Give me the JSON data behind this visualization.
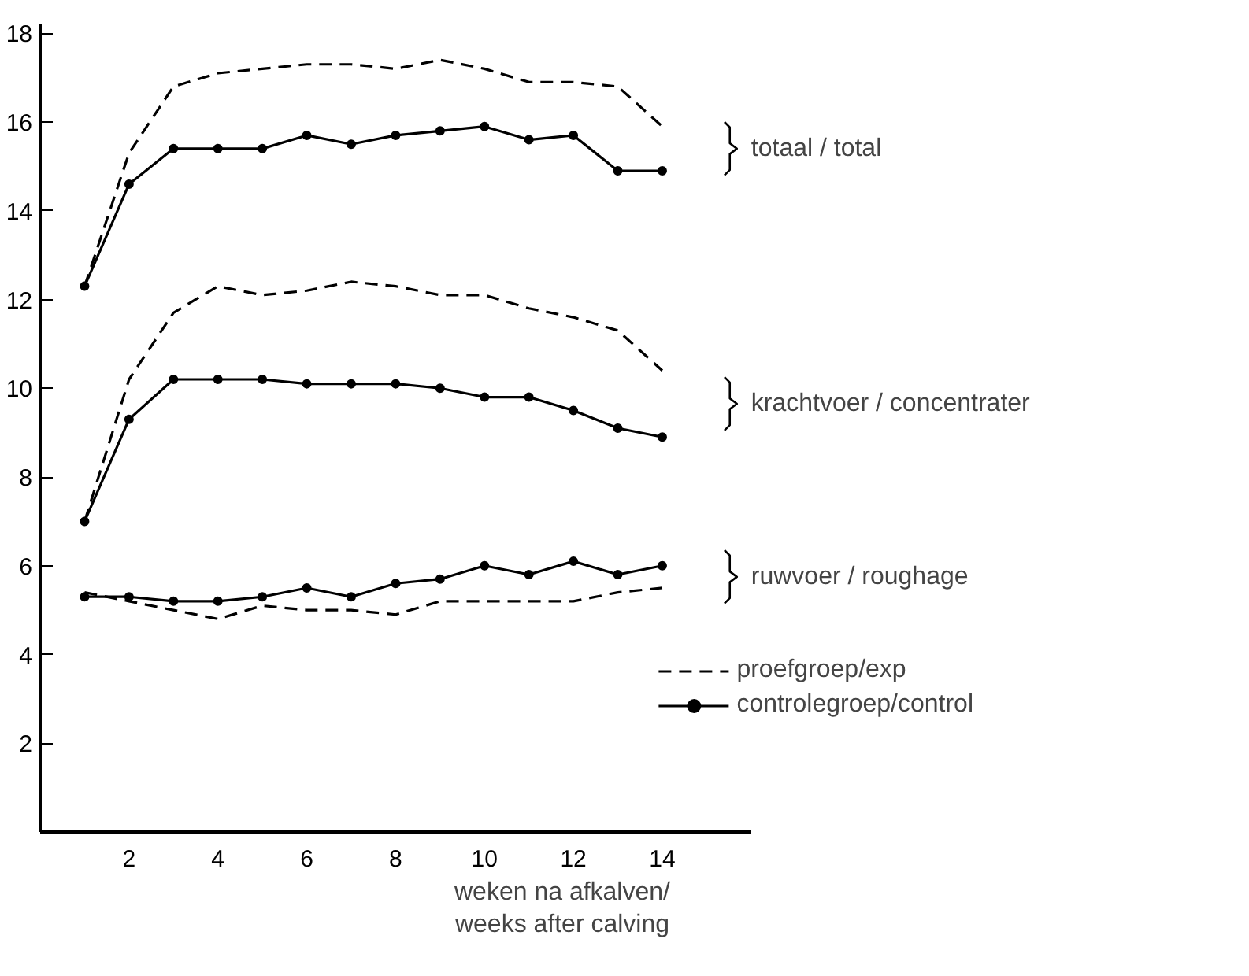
{
  "chart_data": {
    "type": "line",
    "xlabel": "weken na afkalven/\nweeks after calving",
    "x": [
      1,
      2,
      3,
      4,
      5,
      6,
      7,
      8,
      9,
      10,
      11,
      12,
      13,
      14
    ],
    "xlim": [
      0,
      16
    ],
    "ylim": [
      0,
      18.2
    ],
    "xticks": [
      2,
      4,
      6,
      8,
      10,
      12,
      14
    ],
    "yticks": [
      2,
      4,
      6,
      8,
      10,
      12,
      14,
      16,
      18
    ],
    "grid": false,
    "legend": "bottom right",
    "series": [
      {
        "name": "proefgroep/exp",
        "color": "#000000",
        "line_style": "dashed",
        "marker": "none",
        "values": [
          12.3,
          15.3,
          16.8,
          17.1,
          17.2,
          17.3,
          17.3,
          17.2,
          17.4,
          17.2,
          16.9,
          16.9,
          16.8,
          15.9
        ]
      },
      {
        "name": "controlegroep/control",
        "color": "#000000",
        "line_style": "solid",
        "marker": "circle",
        "values": [
          12.3,
          14.6,
          15.4,
          15.4,
          15.4,
          15.7,
          15.5,
          15.7,
          15.8,
          15.9,
          15.6,
          15.7,
          14.9,
          14.9
        ]
      },
      {
        "color": "#000000",
        "line_style": "dashed",
        "marker": "none",
        "values": [
          7.0,
          10.2,
          11.7,
          12.3,
          12.1,
          12.2,
          12.4,
          12.3,
          12.1,
          12.1,
          11.8,
          11.6,
          11.3,
          10.4
        ]
      },
      {
        "color": "#000000",
        "line_style": "solid",
        "marker": "circle",
        "values": [
          7.0,
          9.3,
          10.2,
          10.2,
          10.2,
          10.1,
          10.1,
          10.1,
          10.0,
          9.8,
          9.8,
          9.5,
          9.1,
          8.9
        ]
      },
      {
        "color": "#000000",
        "line_style": "dashed",
        "marker": "none",
        "values": [
          5.4,
          5.2,
          5.0,
          4.8,
          5.1,
          5.0,
          5.0,
          4.9,
          5.2,
          5.2,
          5.2,
          5.2,
          5.4,
          5.5
        ]
      },
      {
        "color": "#000000",
        "line_style": "solid",
        "marker": "circle",
        "values": [
          5.3,
          5.3,
          5.2,
          5.2,
          5.3,
          5.5,
          5.3,
          5.6,
          5.7,
          6.0,
          5.8,
          6.1,
          5.8,
          6.0
        ]
      }
    ],
    "annotations": [
      "totaal / total",
      "krachtvoer / concentrater",
      "ruwvoer / roughage"
    ]
  }
}
